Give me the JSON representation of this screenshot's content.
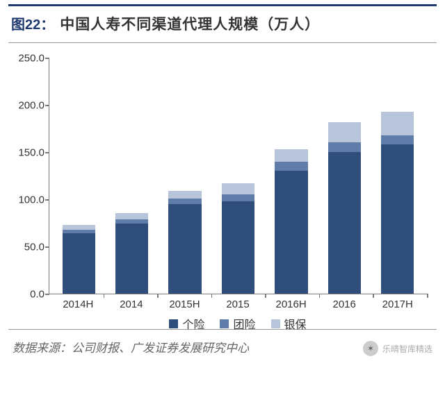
{
  "figure": {
    "label_prefix": "图",
    "number": "22",
    "label": "图22：",
    "title": "中国人寿不同渠道代理人规模（万人）"
  },
  "chart": {
    "type": "stacked-bar",
    "ylim": [
      0,
      250
    ],
    "ytick_step": 50,
    "yticks": [
      0.0,
      50.0,
      100.0,
      150.0,
      200.0,
      250.0
    ],
    "ytick_labels": [
      "0.0",
      "50.0",
      "100.0",
      "150.0",
      "200.0",
      "250.0"
    ],
    "categories": [
      "2014H",
      "2014",
      "2015H",
      "2015",
      "2016H",
      "2016",
      "2017H"
    ],
    "series": [
      {
        "name": "个险",
        "color": "#2f4e7c",
        "values": [
          64,
          74,
          95,
          98,
          130,
          150,
          158
        ]
      },
      {
        "name": "团险",
        "color": "#5f7da8",
        "values": [
          4,
          5,
          6,
          7,
          10,
          10,
          10
        ]
      },
      {
        "name": "银保",
        "color": "#b7c4d9",
        "values": [
          5,
          6,
          8,
          12,
          13,
          22,
          25
        ]
      }
    ],
    "background_color": "#ffffff",
    "axis_color": "#7a7a7a",
    "label_fontsize": 15,
    "legend_fontsize": 16,
    "bar_width": 0.62
  },
  "source": {
    "label": "数据来源：",
    "text": "公司财报、广发证券发展研究中心"
  },
  "watermark": {
    "text": "乐晴智库精选"
  }
}
